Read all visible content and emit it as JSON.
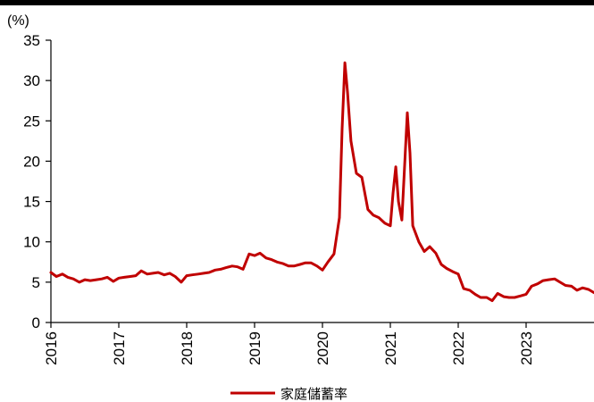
{
  "chart_data": {
    "type": "line",
    "unit_label": "(%)",
    "ylim": [
      0,
      35
    ],
    "yticks": [
      "0",
      "5",
      "10",
      "15",
      "20",
      "25",
      "30",
      "35"
    ],
    "xlim": [
      2016.0,
      2024.0
    ],
    "xticks": [
      "2016",
      "2017",
      "2018",
      "2019",
      "2020",
      "2021",
      "2022",
      "2023"
    ],
    "grid": false,
    "legend_position": "bottom-center",
    "series": [
      {
        "name": "家庭儲蓄率",
        "color": "#c00000",
        "points": [
          [
            2016.0,
            6.2
          ],
          [
            2016.08,
            5.7
          ],
          [
            2016.17,
            6.0
          ],
          [
            2016.25,
            5.6
          ],
          [
            2016.33,
            5.4
          ],
          [
            2016.42,
            5.0
          ],
          [
            2016.5,
            5.3
          ],
          [
            2016.58,
            5.2
          ],
          [
            2016.67,
            5.3
          ],
          [
            2016.75,
            5.4
          ],
          [
            2016.83,
            5.6
          ],
          [
            2016.92,
            5.1
          ],
          [
            2017.0,
            5.5
          ],
          [
            2017.08,
            5.6
          ],
          [
            2017.17,
            5.7
          ],
          [
            2017.25,
            5.8
          ],
          [
            2017.33,
            6.4
          ],
          [
            2017.42,
            6.0
          ],
          [
            2017.5,
            6.1
          ],
          [
            2017.58,
            6.2
          ],
          [
            2017.67,
            5.9
          ],
          [
            2017.75,
            6.1
          ],
          [
            2017.83,
            5.7
          ],
          [
            2017.92,
            5.0
          ],
          [
            2018.0,
            5.8
          ],
          [
            2018.08,
            5.9
          ],
          [
            2018.17,
            6.0
          ],
          [
            2018.25,
            6.1
          ],
          [
            2018.33,
            6.2
          ],
          [
            2018.42,
            6.5
          ],
          [
            2018.5,
            6.6
          ],
          [
            2018.58,
            6.8
          ],
          [
            2018.67,
            7.0
          ],
          [
            2018.75,
            6.9
          ],
          [
            2018.83,
            6.6
          ],
          [
            2018.92,
            8.5
          ],
          [
            2019.0,
            8.3
          ],
          [
            2019.08,
            8.6
          ],
          [
            2019.17,
            8.0
          ],
          [
            2019.25,
            7.8
          ],
          [
            2019.33,
            7.5
          ],
          [
            2019.42,
            7.3
          ],
          [
            2019.5,
            7.0
          ],
          [
            2019.58,
            7.0
          ],
          [
            2019.67,
            7.2
          ],
          [
            2019.75,
            7.4
          ],
          [
            2019.83,
            7.4
          ],
          [
            2019.92,
            7.0
          ],
          [
            2020.0,
            6.5
          ],
          [
            2020.08,
            7.5
          ],
          [
            2020.17,
            8.5
          ],
          [
            2020.25,
            13.0
          ],
          [
            2020.29,
            24.0
          ],
          [
            2020.33,
            32.2
          ],
          [
            2020.37,
            28.5
          ],
          [
            2020.42,
            22.5
          ],
          [
            2020.5,
            18.5
          ],
          [
            2020.58,
            18.0
          ],
          [
            2020.67,
            14.0
          ],
          [
            2020.75,
            13.3
          ],
          [
            2020.83,
            13.0
          ],
          [
            2020.92,
            12.3
          ],
          [
            2021.0,
            12.0
          ],
          [
            2021.04,
            16.0
          ],
          [
            2021.08,
            19.3
          ],
          [
            2021.12,
            15.0
          ],
          [
            2021.17,
            12.7
          ],
          [
            2021.22,
            21.0
          ],
          [
            2021.25,
            26.0
          ],
          [
            2021.29,
            21.0
          ],
          [
            2021.33,
            12.0
          ],
          [
            2021.42,
            10.0
          ],
          [
            2021.5,
            8.8
          ],
          [
            2021.58,
            9.4
          ],
          [
            2021.67,
            8.6
          ],
          [
            2021.75,
            7.2
          ],
          [
            2021.83,
            6.7
          ],
          [
            2021.92,
            6.3
          ],
          [
            2022.0,
            6.0
          ],
          [
            2022.08,
            4.2
          ],
          [
            2022.17,
            4.0
          ],
          [
            2022.25,
            3.5
          ],
          [
            2022.33,
            3.1
          ],
          [
            2022.42,
            3.1
          ],
          [
            2022.5,
            2.7
          ],
          [
            2022.58,
            3.6
          ],
          [
            2022.67,
            3.2
          ],
          [
            2022.75,
            3.1
          ],
          [
            2022.83,
            3.1
          ],
          [
            2022.92,
            3.3
          ],
          [
            2023.0,
            3.5
          ],
          [
            2023.08,
            4.5
          ],
          [
            2023.17,
            4.8
          ],
          [
            2023.25,
            5.2
          ],
          [
            2023.33,
            5.3
          ],
          [
            2023.42,
            5.4
          ],
          [
            2023.5,
            5.0
          ],
          [
            2023.58,
            4.6
          ],
          [
            2023.67,
            4.5
          ],
          [
            2023.75,
            4.0
          ],
          [
            2023.83,
            4.3
          ],
          [
            2023.92,
            4.1
          ],
          [
            2024.0,
            3.7
          ]
        ]
      }
    ]
  }
}
